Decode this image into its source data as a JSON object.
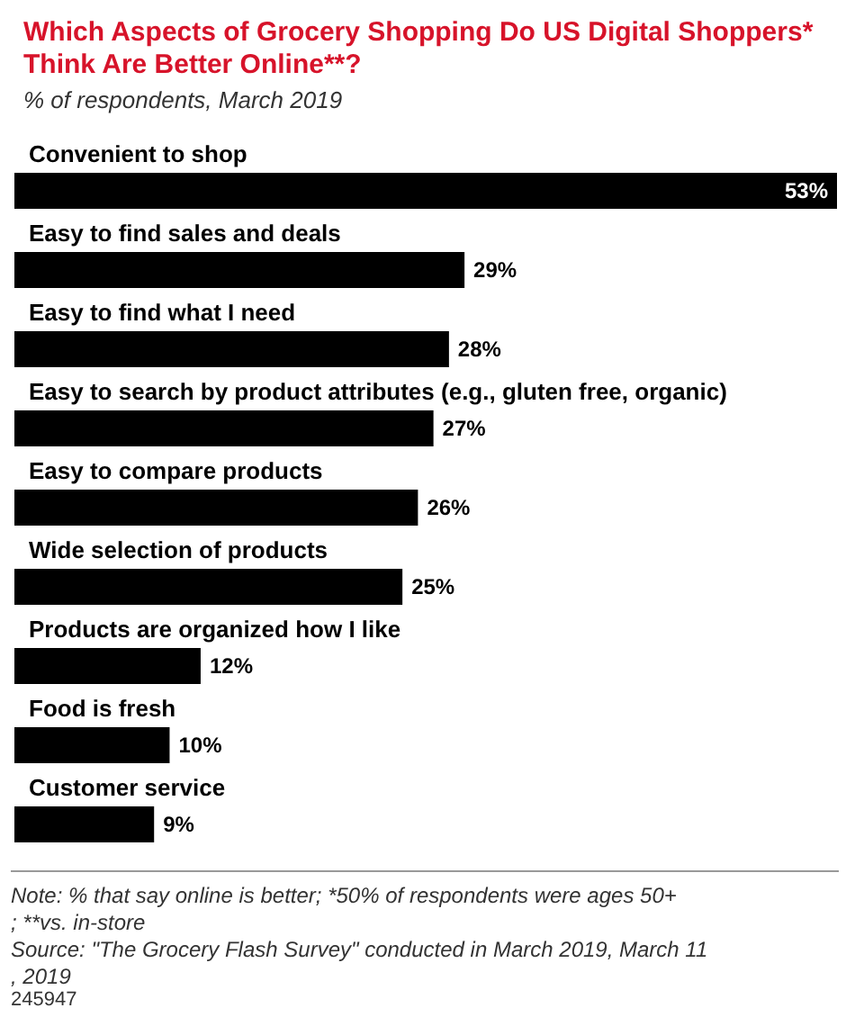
{
  "chart_data": {
    "type": "bar",
    "orientation": "horizontal",
    "title": "Which Aspects of Grocery Shopping Do US Digital Shoppers* Think Are Better Online**?",
    "subtitle": "% of respondents, March 2019",
    "categories": [
      "Convenient to shop",
      "Easy to find sales and deals",
      "Easy to find what I need",
      "Easy to search by product attributes (e.g., gluten free, organic)",
      "Easy to compare products",
      "Wide selection of products",
      "Products are organized how I like",
      "Food is fresh",
      "Customer service"
    ],
    "values": [
      53,
      29,
      28,
      27,
      26,
      25,
      12,
      10,
      9
    ],
    "value_labels": [
      "53%",
      "29%",
      "28%",
      "27%",
      "26%",
      "25%",
      "12%",
      "10%",
      "9%"
    ],
    "color": "#000000",
    "annotations": [
      "Note: % that say online is better; *50% of respondents were ages 50+; **vs. in-store",
      "Source: \"The Grocery Flash Survey\" conducted in March 2019, March 11, 2019",
      "245947"
    ]
  }
}
